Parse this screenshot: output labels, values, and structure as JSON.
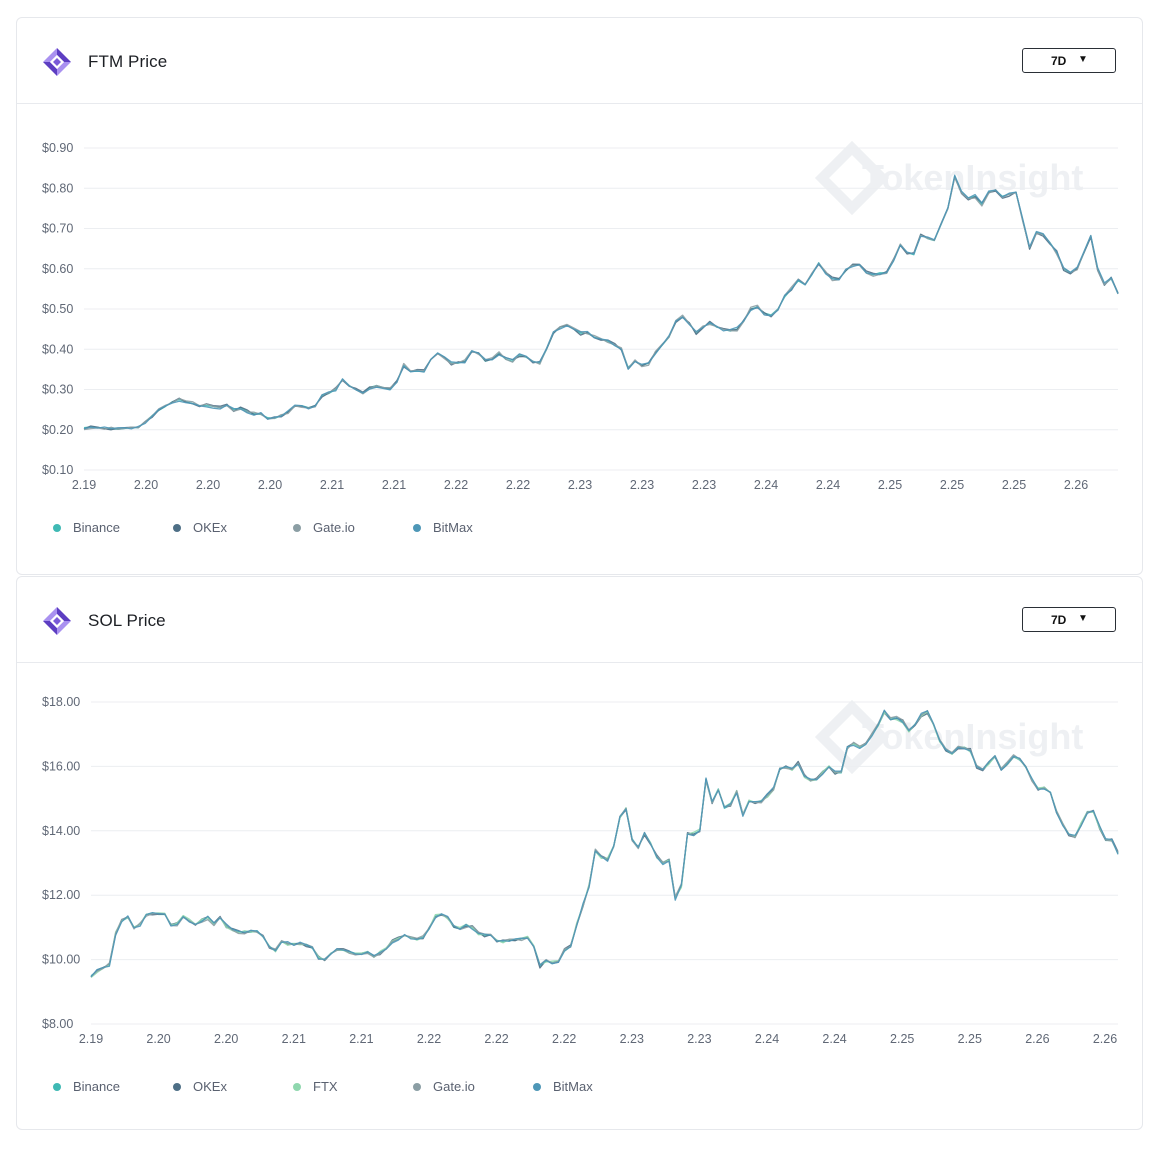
{
  "brand_watermark": "TokenInsight",
  "colors": {
    "Binance": "#3fb9b4",
    "OKEx": "#4e6f86",
    "FTX": "#8fd7ae",
    "Gate.io": "#8b9ea4",
    "BitMax": "#4e97b7",
    "logo_primary": "#5d3ec2",
    "logo_secondary": "#a991f0",
    "grid": "#eceef1"
  },
  "cards": [
    {
      "id": "ftm",
      "title": "FTM Price",
      "range": "7D",
      "legend": [
        "Binance",
        "OKEx",
        "Gate.io",
        "BitMax"
      ]
    },
    {
      "id": "sol",
      "title": "SOL Price",
      "range": "7D",
      "legend": [
        "Binance",
        "OKEx",
        "FTX",
        "Gate.io",
        "BitMax"
      ]
    }
  ],
  "chart_data": [
    {
      "type": "line",
      "title": "FTM Price",
      "y_ticks": [
        "$0.10",
        "$0.20",
        "$0.30",
        "$0.40",
        "$0.50",
        "$0.60",
        "$0.70",
        "$0.80",
        "$0.90"
      ],
      "ylim": [
        0.1,
        0.9
      ],
      "x_ticks": [
        "2.19",
        "2.20",
        "2.20",
        "2.20",
        "2.21",
        "2.21",
        "2.22",
        "2.22",
        "2.23",
        "2.23",
        "2.23",
        "2.24",
        "2.24",
        "2.25",
        "2.25",
        "2.25",
        "2.26"
      ],
      "grid": true,
      "legend_position": "bottom-left",
      "series_names": [
        "Binance",
        "OKEx",
        "Gate.io",
        "BitMax"
      ],
      "values": [
        0.205,
        0.207,
        0.206,
        0.203,
        0.202,
        0.201,
        0.203,
        0.206,
        0.205,
        0.22,
        0.235,
        0.248,
        0.258,
        0.27,
        0.275,
        0.27,
        0.265,
        0.26,
        0.26,
        0.258,
        0.255,
        0.26,
        0.25,
        0.255,
        0.245,
        0.24,
        0.238,
        0.23,
        0.228,
        0.235,
        0.245,
        0.258,
        0.26,
        0.255,
        0.26,
        0.285,
        0.29,
        0.3,
        0.325,
        0.31,
        0.3,
        0.29,
        0.305,
        0.31,
        0.305,
        0.3,
        0.32,
        0.36,
        0.345,
        0.345,
        0.345,
        0.375,
        0.39,
        0.38,
        0.365,
        0.365,
        0.37,
        0.395,
        0.39,
        0.37,
        0.375,
        0.39,
        0.375,
        0.37,
        0.385,
        0.38,
        0.37,
        0.365,
        0.4,
        0.44,
        0.455,
        0.46,
        0.45,
        0.44,
        0.44,
        0.43,
        0.425,
        0.42,
        0.41,
        0.4,
        0.355,
        0.37,
        0.36,
        0.365,
        0.39,
        0.41,
        0.43,
        0.47,
        0.48,
        0.465,
        0.44,
        0.455,
        0.465,
        0.455,
        0.45,
        0.445,
        0.45,
        0.47,
        0.5,
        0.505,
        0.49,
        0.485,
        0.5,
        0.53,
        0.55,
        0.57,
        0.56,
        0.585,
        0.615,
        0.59,
        0.575,
        0.575,
        0.595,
        0.61,
        0.61,
        0.59,
        0.585,
        0.59,
        0.59,
        0.62,
        0.66,
        0.64,
        0.635,
        0.685,
        0.675,
        0.67,
        0.71,
        0.75,
        0.83,
        0.79,
        0.775,
        0.78,
        0.76,
        0.79,
        0.795,
        0.78,
        0.785,
        0.79,
        0.72,
        0.65,
        0.69,
        0.685,
        0.665,
        0.64,
        0.6,
        0.59,
        0.6,
        0.64,
        0.68,
        0.6,
        0.56,
        0.575,
        0.54
      ],
      "xlabel": "",
      "ylabel": ""
    },
    {
      "type": "line",
      "title": "SOL Price",
      "y_ticks": [
        "$8.00",
        "$10.00",
        "$12.00",
        "$14.00",
        "$16.00",
        "$18.00"
      ],
      "ylim": [
        8,
        18
      ],
      "x_ticks": [
        "2.19",
        "2.20",
        "2.20",
        "2.21",
        "2.21",
        "2.22",
        "2.22",
        "2.22",
        "2.23",
        "2.23",
        "2.24",
        "2.24",
        "2.25",
        "2.25",
        "2.26",
        "2.26"
      ],
      "grid": true,
      "legend_position": "bottom-left",
      "series_names": [
        "Binance",
        "OKEx",
        "FTX",
        "Gate.io",
        "BitMax"
      ],
      "values": [
        9.5,
        9.65,
        9.75,
        9.85,
        10.8,
        11.2,
        11.3,
        11.0,
        11.1,
        11.4,
        11.45,
        11.4,
        11.4,
        11.1,
        11.1,
        11.35,
        11.2,
        11.1,
        11.2,
        11.3,
        11.1,
        11.3,
        11.05,
        10.95,
        10.85,
        10.85,
        10.85,
        10.9,
        10.7,
        10.4,
        10.3,
        10.55,
        10.5,
        10.5,
        10.5,
        10.45,
        10.35,
        10.05,
        10.0,
        10.2,
        10.3,
        10.3,
        10.25,
        10.2,
        10.2,
        10.2,
        10.1,
        10.2,
        10.35,
        10.55,
        10.65,
        10.75,
        10.7,
        10.65,
        10.7,
        10.95,
        11.35,
        11.4,
        11.3,
        11.0,
        10.95,
        11.05,
        11.0,
        10.8,
        10.75,
        10.75,
        10.6,
        10.55,
        10.6,
        10.6,
        10.65,
        10.7,
        10.4,
        9.8,
        9.95,
        9.9,
        9.95,
        10.3,
        10.4,
        11.1,
        11.7,
        12.3,
        13.4,
        13.2,
        13.1,
        13.5,
        14.4,
        14.7,
        13.7,
        13.5,
        13.9,
        13.6,
        13.2,
        13.0,
        13.1,
        11.9,
        12.3,
        13.9,
        13.9,
        14.0,
        15.6,
        14.9,
        15.3,
        14.7,
        14.8,
        15.2,
        14.5,
        14.9,
        14.9,
        14.9,
        15.1,
        15.3,
        15.9,
        16.0,
        15.9,
        16.1,
        15.7,
        15.6,
        15.6,
        15.8,
        16.0,
        15.8,
        15.8,
        16.6,
        16.7,
        16.6,
        16.7,
        17.0,
        17.3,
        17.7,
        17.5,
        17.5,
        17.4,
        17.1,
        17.3,
        17.6,
        17.7,
        17.3,
        16.8,
        16.5,
        16.4,
        16.6,
        16.6,
        16.5,
        16.0,
        15.9,
        16.1,
        16.3,
        15.9,
        16.1,
        16.3,
        16.2,
        16.0,
        15.6,
        15.3,
        15.3,
        15.2,
        14.6,
        14.2,
        13.9,
        13.8,
        14.2,
        14.6,
        14.6,
        14.1,
        13.7,
        13.7,
        13.3
      ],
      "xlabel": "",
      "ylabel": ""
    }
  ]
}
